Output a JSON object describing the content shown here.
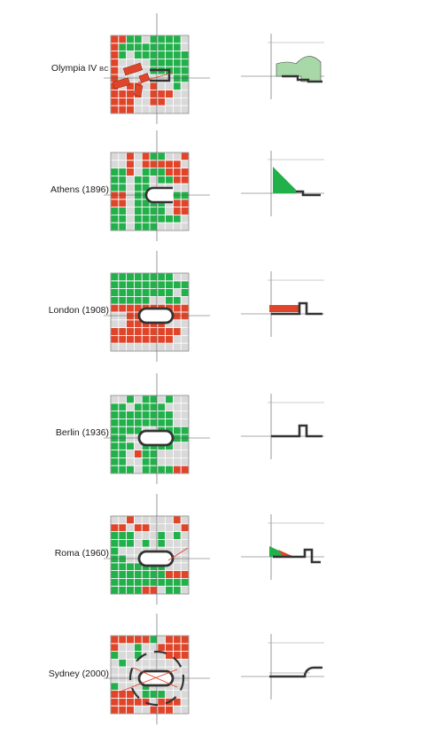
{
  "colors": {
    "green": "#22b04b",
    "red": "#e0452a",
    "grey": "#d9d9d9",
    "line": "#555555",
    "text": "#1a1a1a"
  },
  "rows": [
    {
      "id": "olympia",
      "label": "Olympia IV ",
      "suffix": "BC"
    },
    {
      "id": "athens",
      "label": "Athens (1896)",
      "suffix": ""
    },
    {
      "id": "london",
      "label": "London (1908)",
      "suffix": ""
    },
    {
      "id": "berlin",
      "label": "Berlin (1936)",
      "suffix": ""
    },
    {
      "id": "roma",
      "label": "Roma (1960)",
      "suffix": ""
    },
    {
      "id": "sydney",
      "label": "Sydney (2000)",
      "suffix": ""
    }
  ]
}
